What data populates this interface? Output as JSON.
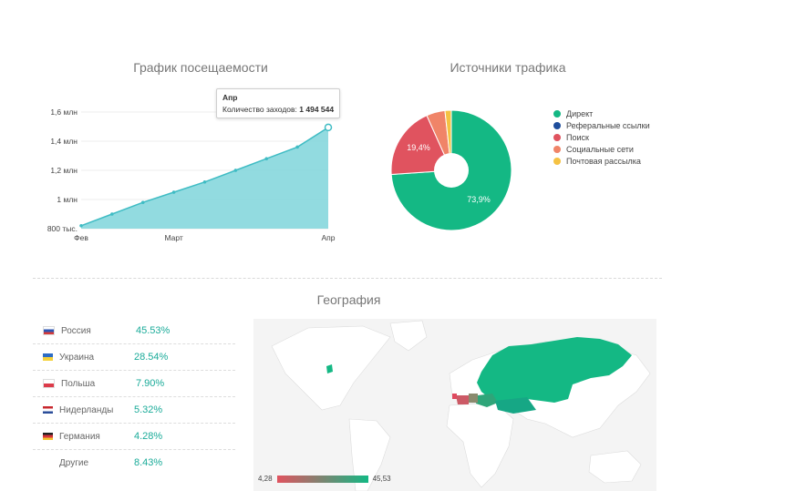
{
  "visits": {
    "title": "График посещаемости",
    "y_ticks": [
      "1,6 млн",
      "1,4 млн",
      "1,2 млн",
      "1 млн",
      "800 тыс."
    ],
    "x_ticks": [
      "Фев",
      "Март",
      "Апр"
    ],
    "tooltip": {
      "title": "Апр",
      "label": "Количество заходов:",
      "value": "1 494 544"
    },
    "color": "#5fc9d0"
  },
  "traffic": {
    "title": "Источники трафика",
    "labels": {
      "direct": "73,9%",
      "search": "19,4%"
    },
    "legend": [
      {
        "label": "Директ",
        "color": "#14b884"
      },
      {
        "label": "Реферальные ссылки",
        "color": "#1f4e9c"
      },
      {
        "label": "Поиск",
        "color": "#e0535f"
      },
      {
        "label": "Социальные сети",
        "color": "#f08468"
      },
      {
        "label": "Почтовая рассылка",
        "color": "#f5c243"
      }
    ]
  },
  "geo": {
    "title": "География",
    "rows": [
      {
        "country": "Россия",
        "pct": "45.53%"
      },
      {
        "country": "Украина",
        "pct": "28.54%"
      },
      {
        "country": "Польша",
        "pct": "7.90%"
      },
      {
        "country": "Нидерланды",
        "pct": "5.32%"
      },
      {
        "country": "Германия",
        "pct": "4.28%"
      },
      {
        "country": "Другие",
        "pct": "8.43%"
      }
    ],
    "scale_min": "4,28",
    "scale_max": "45,53"
  },
  "chart_data": [
    {
      "type": "area",
      "title": "График посещаемости",
      "x": [
        "Фев",
        "",
        "",
        "Март",
        "",
        "",
        "",
        "",
        "Апр"
      ],
      "x_labels": [
        "Фев",
        "Март",
        "Апр"
      ],
      "values": [
        820000,
        900000,
        980000,
        1050000,
        1120000,
        1200000,
        1280000,
        1360000,
        1494544
      ],
      "ylim": [
        800000,
        1600000
      ],
      "grid": true
    },
    {
      "type": "pie",
      "title": "Источники трафика",
      "categories": [
        "Директ",
        "Реферальные ссылки",
        "Поиск",
        "Социальные сети",
        "Почтовая рассылка"
      ],
      "values": [
        73.9,
        0,
        19.4,
        5.0,
        1.7
      ],
      "legend": "right"
    }
  ]
}
